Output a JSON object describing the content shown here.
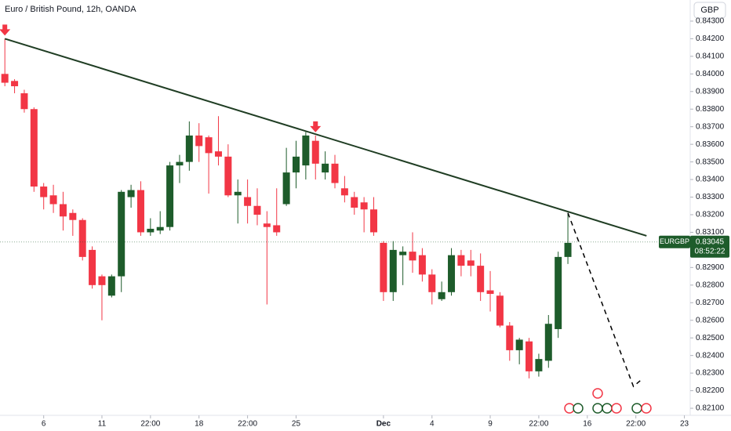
{
  "chart_data": {
    "type": "candlestick",
    "title": "Euro / British Pound, 12h, OANDA",
    "currency_button": "GBP",
    "symbol": "EURGBP",
    "last_price": 0.83045,
    "countdown": "08:52:22",
    "up_color": "#1e5c2b",
    "down_color": "#f23645",
    "xlim": [
      -0.5,
      70.6
    ],
    "ylim": [
      0.8206,
      0.8442
    ],
    "xticks": [
      {
        "value": 4,
        "label": "6"
      },
      {
        "value": 10,
        "label": "11"
      },
      {
        "value": 15,
        "label": "22:00"
      },
      {
        "value": 20,
        "label": "18"
      },
      {
        "value": 25,
        "label": "22:00"
      },
      {
        "value": 30,
        "label": "25"
      },
      {
        "value": 39,
        "label": "Dec"
      },
      {
        "value": 44,
        "label": "4"
      },
      {
        "value": 50,
        "label": "9"
      },
      {
        "value": 55,
        "label": "22:00"
      },
      {
        "value": 60,
        "label": "16"
      },
      {
        "value": 65,
        "label": "22:00"
      },
      {
        "value": 70,
        "label": "23"
      }
    ],
    "yticks": [
      {
        "value": 0.843,
        "label": "0.84300"
      },
      {
        "value": 0.842,
        "label": "0.84200"
      },
      {
        "value": 0.841,
        "label": "0.84100"
      },
      {
        "value": 0.84,
        "label": "0.84000"
      },
      {
        "value": 0.839,
        "label": "0.83900"
      },
      {
        "value": 0.838,
        "label": "0.83800"
      },
      {
        "value": 0.837,
        "label": "0.83700"
      },
      {
        "value": 0.836,
        "label": "0.83600"
      },
      {
        "value": 0.835,
        "label": "0.83500"
      },
      {
        "value": 0.834,
        "label": "0.83400"
      },
      {
        "value": 0.833,
        "label": "0.83300"
      },
      {
        "value": 0.832,
        "label": "0.83200"
      },
      {
        "value": 0.831,
        "label": "0.83100"
      },
      {
        "value": 0.829,
        "label": "0.82900"
      },
      {
        "value": 0.828,
        "label": "0.82800"
      },
      {
        "value": 0.827,
        "label": "0.82700"
      },
      {
        "value": 0.826,
        "label": "0.82600"
      },
      {
        "value": 0.825,
        "label": "0.82500"
      },
      {
        "value": 0.824,
        "label": "0.82400"
      },
      {
        "value": 0.823,
        "label": "0.82300"
      },
      {
        "value": 0.822,
        "label": "0.82200"
      },
      {
        "value": 0.821,
        "label": "0.82100"
      }
    ],
    "open": [
      0.84,
      0.8396,
      0.8389,
      0.838,
      0.8336,
      0.8331,
      0.8326,
      0.8321,
      0.8317,
      0.83,
      0.8285,
      0.8274,
      0.8285,
      0.833,
      0.8334,
      0.831,
      0.8311,
      0.8313,
      0.8348,
      0.835,
      0.8365,
      0.8364,
      0.8356,
      0.8353,
      0.8331,
      0.833,
      0.8325,
      0.8315,
      0.8314,
      0.8326,
      0.8344,
      0.8348,
      0.8362,
      0.8344,
      0.8349,
      0.8335,
      0.833,
      0.8327,
      0.8323,
      0.8304,
      0.8276,
      0.8297,
      0.8299,
      0.8297,
      0.8286,
      0.8272,
      0.8276,
      0.8297,
      0.8294,
      0.8291,
      0.8277,
      0.8274,
      0.8257,
      0.8243,
      0.8248,
      0.8231,
      0.8237,
      0.8255,
      0.8296
    ],
    "high": [
      0.842,
      0.8397,
      0.8391,
      0.8381,
      0.8338,
      0.8337,
      0.8333,
      0.8323,
      0.8318,
      0.8302,
      0.8286,
      0.8286,
      0.8334,
      0.8337,
      0.8339,
      0.8318,
      0.8322,
      0.835,
      0.8354,
      0.8373,
      0.8372,
      0.8365,
      0.8376,
      0.836,
      0.834,
      0.834,
      0.8335,
      0.8322,
      0.8335,
      0.8358,
      0.8362,
      0.8367,
      0.8365,
      0.8356,
      0.8354,
      0.8342,
      0.8333,
      0.833,
      0.833,
      0.8305,
      0.8305,
      0.8302,
      0.831,
      0.8301,
      0.8289,
      0.8282,
      0.8301,
      0.83,
      0.83,
      0.8298,
      0.8288,
      0.8276,
      0.8259,
      0.825,
      0.825,
      0.8241,
      0.8263,
      0.8299,
      0.8321
    ],
    "low": [
      0.8393,
      0.8389,
      0.8378,
      0.8333,
      0.8323,
      0.8321,
      0.8311,
      0.8308,
      0.8294,
      0.8278,
      0.826,
      0.8273,
      0.8276,
      0.8324,
      0.8308,
      0.8308,
      0.8309,
      0.8311,
      0.8338,
      0.8345,
      0.835,
      0.8332,
      0.8348,
      0.833,
      0.8315,
      0.8315,
      0.8314,
      0.8269,
      0.8308,
      0.8325,
      0.8335,
      0.834,
      0.834,
      0.834,
      0.8335,
      0.8327,
      0.832,
      0.831,
      0.8308,
      0.8271,
      0.8271,
      0.828,
      0.8287,
      0.8282,
      0.8269,
      0.8271,
      0.8274,
      0.8285,
      0.8285,
      0.8271,
      0.8265,
      0.8256,
      0.8237,
      0.8235,
      0.8227,
      0.8228,
      0.8233,
      0.825,
      0.8292
    ],
    "close": [
      0.8395,
      0.8393,
      0.838,
      0.8336,
      0.833,
      0.8326,
      0.8319,
      0.8317,
      0.8296,
      0.828,
      0.828,
      0.8285,
      0.8333,
      0.8334,
      0.831,
      0.8312,
      0.8313,
      0.8348,
      0.835,
      0.8365,
      0.8359,
      0.8355,
      0.8353,
      0.8331,
      0.8333,
      0.8325,
      0.832,
      0.8313,
      0.831,
      0.8344,
      0.8353,
      0.8365,
      0.8349,
      0.8349,
      0.8338,
      0.8331,
      0.8324,
      0.8323,
      0.831,
      0.8276,
      0.83,
      0.8299,
      0.8294,
      0.8286,
      0.8276,
      0.8276,
      0.8297,
      0.8291,
      0.8291,
      0.8276,
      0.8275,
      0.8257,
      0.8243,
      0.8249,
      0.8231,
      0.8238,
      0.8258,
      0.8296,
      0.8304
    ],
    "trendline": {
      "x": [
        0,
        66.1
      ],
      "values": [
        0.842,
        0.8308
      ],
      "color": "#1f3d23"
    },
    "projection": {
      "x": [
        58,
        64.75,
        65.6
      ],
      "values": [
        0.8321,
        0.82224,
        0.82264
      ],
      "color": "#000000"
    },
    "arrow_markers": [
      0,
      32
    ]
  }
}
